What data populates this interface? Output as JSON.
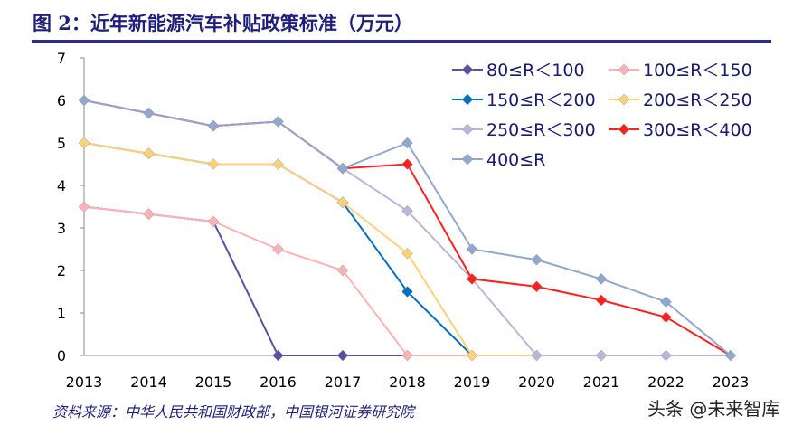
{
  "title": "图 2：近年新能源汽车补贴政策标准（万元）",
  "source": "资料来源：中华人民共和国财政部，中国银河证券研究院",
  "watermark": "头条 @未来智库",
  "chart_data": {
    "type": "line",
    "x": [
      "2013",
      "2014",
      "2015",
      "2016",
      "2017",
      "2018",
      "2019",
      "2020",
      "2021",
      "2022",
      "2023"
    ],
    "yticks": [
      "0",
      "1",
      "2",
      "3",
      "4",
      "5",
      "6",
      "7"
    ],
    "ylim": [
      0,
      7
    ],
    "grid": false,
    "legend_position": "top-right",
    "series": [
      {
        "name": "80≤R＜100",
        "color": "#5B509F",
        "values": [
          3.5,
          3.325,
          3.15,
          0,
          0,
          0,
          0,
          0,
          0,
          0,
          0
        ]
      },
      {
        "name": "100≤R＜150",
        "color": "#FFB2B6",
        "values": [
          3.5,
          3.325,
          3.15,
          2.5,
          2.0,
          0,
          0,
          0,
          0,
          0,
          0
        ]
      },
      {
        "name": "150≤R＜200",
        "color": "#0070C0",
        "values": [
          5,
          4.75,
          4.5,
          4.5,
          3.6,
          1.5,
          0,
          0,
          0,
          0,
          0
        ]
      },
      {
        "name": "200≤R＜250",
        "color": "#FFD27A",
        "values": [
          5,
          4.75,
          4.5,
          4.5,
          3.6,
          2.4,
          0,
          0,
          0,
          0,
          0
        ]
      },
      {
        "name": "250≤R＜300",
        "color": "#BDB5D8",
        "values": [
          6,
          5.7,
          5.4,
          5.5,
          4.4,
          3.4,
          1.8,
          0,
          0,
          0,
          0
        ]
      },
      {
        "name": "300≤R＜400",
        "color": "#FF1F1F",
        "values": [
          6,
          5.7,
          5.4,
          5.5,
          4.4,
          4.5,
          1.8,
          1.62,
          1.3,
          0.9,
          0
        ]
      },
      {
        "name": "400≤R",
        "color": "#91A8CE",
        "values": [
          6,
          5.7,
          5.4,
          5.5,
          4.4,
          5.0,
          2.5,
          2.25,
          1.8,
          1.26,
          0
        ]
      }
    ]
  }
}
